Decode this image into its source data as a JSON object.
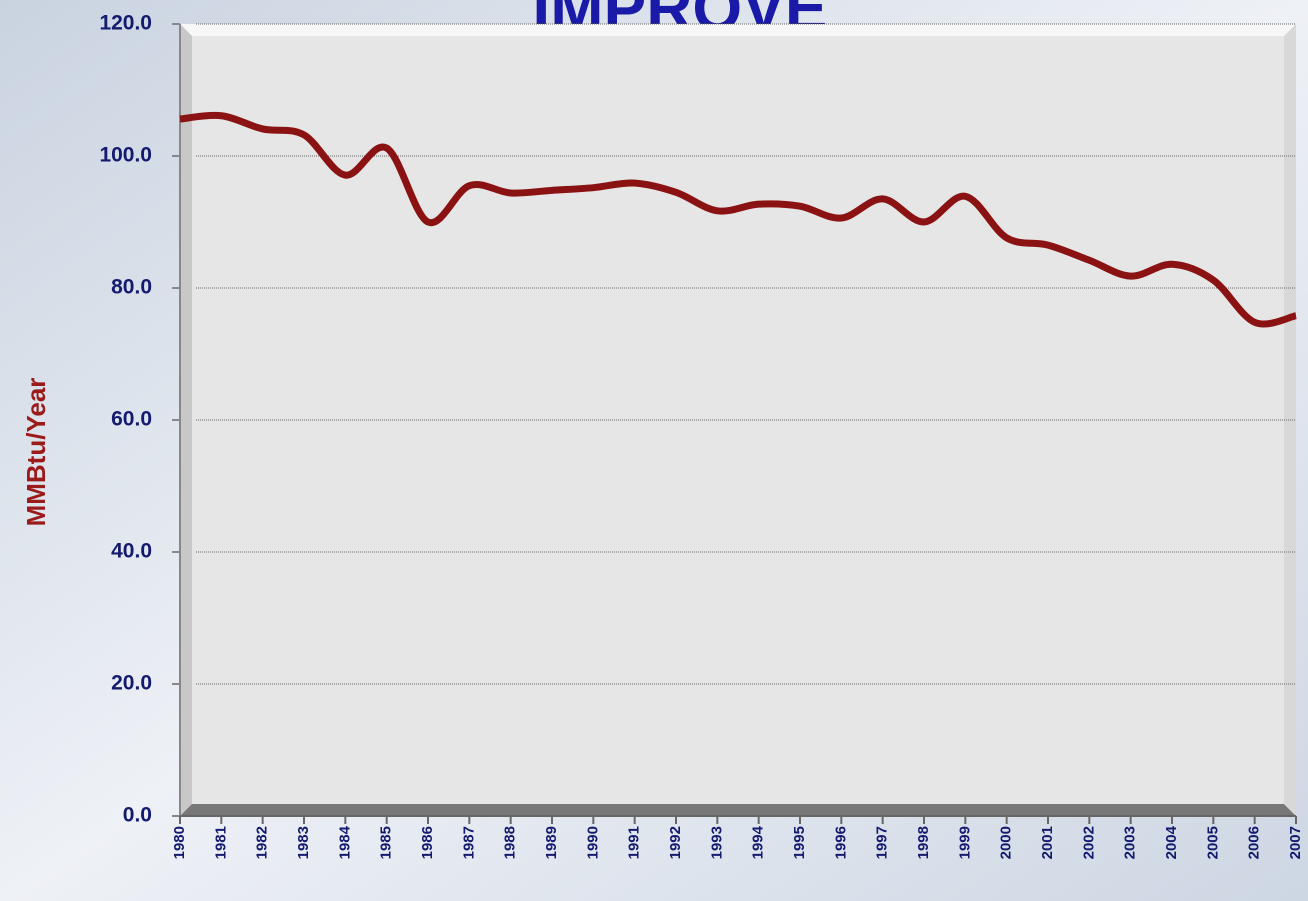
{
  "chart_data": {
    "type": "line",
    "title": "IMPROVE",
    "y_label": "MMBtu/Year",
    "x": [
      1980,
      1981,
      1982,
      1983,
      1984,
      1985,
      1986,
      1987,
      1988,
      1989,
      1990,
      1991,
      1992,
      1993,
      1994,
      1995,
      1996,
      1997,
      1998,
      1999,
      2000,
      2001,
      2002,
      2003,
      2004,
      2005,
      2006,
      2007
    ],
    "series": [
      {
        "name": "MMBtu/Year",
        "color": "#8b1212",
        "values": [
          105.6,
          106.1,
          104.1,
          103.2,
          97.1,
          101.2,
          90.0,
          95.5,
          94.4,
          94.8,
          95.2,
          95.9,
          94.5,
          91.7,
          92.7,
          92.4,
          90.6,
          93.5,
          90.0,
          93.9,
          87.6,
          86.5,
          84.2,
          81.8,
          83.6,
          81.2,
          74.8,
          75.8
        ]
      }
    ],
    "xlim": [
      1980,
      2007
    ],
    "xticks": [
      1980,
      1981,
      1982,
      1983,
      1984,
      1985,
      1986,
      1987,
      1988,
      1989,
      1990,
      1991,
      1992,
      1993,
      1994,
      1995,
      1996,
      1997,
      1998,
      1999,
      2000,
      2001,
      2002,
      2003,
      2004,
      2005,
      2006,
      2007
    ],
    "ylim": [
      0,
      120
    ],
    "yticks": [
      {
        "value": 0,
        "label": "0.0"
      },
      {
        "value": 20,
        "label": "20.0"
      },
      {
        "value": 40,
        "label": "40.0"
      },
      {
        "value": 60,
        "label": "60.0"
      },
      {
        "value": 80,
        "label": "80.0"
      },
      {
        "value": 100,
        "label": "100.0"
      },
      {
        "value": 120,
        "label": "120.0"
      }
    ],
    "grid": true
  }
}
